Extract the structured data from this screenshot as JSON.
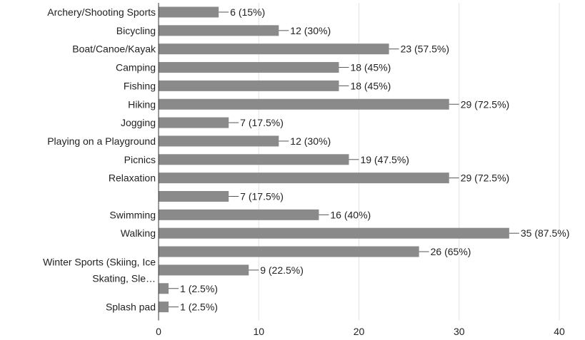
{
  "chart_data": {
    "type": "bar",
    "orientation": "horizontal",
    "categories": [
      "Archery/Shooting Sports",
      "Bicycling",
      "Boat/Canoe/Kayak",
      "Camping",
      "Fishing",
      "Hiking",
      "Jogging",
      "Playing on a Playground",
      "Picnics",
      "Relaxation",
      "",
      "Swimming",
      "Walking",
      "",
      "Winter Sports (Skiing, Ice\nSkating, Sle…",
      "",
      "Splash pad"
    ],
    "values": [
      6,
      12,
      23,
      18,
      18,
      29,
      7,
      12,
      19,
      29,
      7,
      16,
      35,
      26,
      9,
      1,
      1
    ],
    "value_labels": [
      "6 (15%)",
      "12 (30%)",
      "23 (57.5%)",
      "18 (45%)",
      "18 (45%)",
      "29 (72.5%)",
      "7 (17.5%)",
      "12 (30%)",
      "19 (47.5%)",
      "29 (72.5%)",
      "7 (17.5%)",
      "16 (40%)",
      "35 (87.5%)",
      "26 (65%)",
      "9 (22.5%)",
      "1 (2.5%)",
      "1 (2.5%)"
    ],
    "x_ticks": [
      "0",
      "10",
      "20",
      "30",
      "40"
    ],
    "xlim": [
      0,
      40
    ],
    "grid": true,
    "bar_color": "#8a8a8a"
  }
}
